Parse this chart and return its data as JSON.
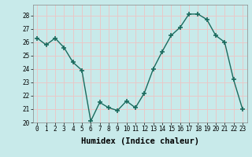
{
  "x": [
    0,
    1,
    2,
    3,
    4,
    5,
    6,
    7,
    8,
    9,
    10,
    11,
    12,
    13,
    14,
    15,
    16,
    17,
    18,
    19,
    20,
    21,
    22,
    23
  ],
  "y": [
    26.3,
    25.8,
    26.3,
    25.6,
    24.5,
    23.9,
    20.1,
    21.5,
    21.1,
    20.9,
    21.6,
    21.1,
    22.2,
    24.0,
    25.3,
    26.5,
    27.1,
    28.1,
    28.1,
    27.7,
    26.5,
    26.0,
    23.2,
    21.0
  ],
  "line_color": "#1a6b5e",
  "marker": "+",
  "marker_size": 4,
  "bg_color": "#c8eaea",
  "grid_color": "#e8c8c8",
  "xlabel": "Humidex (Indice chaleur)",
  "xlim": [
    -0.5,
    23.5
  ],
  "ylim": [
    20,
    28.8
  ],
  "yticks": [
    20,
    21,
    22,
    23,
    24,
    25,
    26,
    27,
    28
  ],
  "xticks": [
    0,
    1,
    2,
    3,
    4,
    5,
    6,
    7,
    8,
    9,
    10,
    11,
    12,
    13,
    14,
    15,
    16,
    17,
    18,
    19,
    20,
    21,
    22,
    23
  ],
  "tick_fontsize": 5.5,
  "xlabel_fontsize": 7.5,
  "line_width": 1.0
}
